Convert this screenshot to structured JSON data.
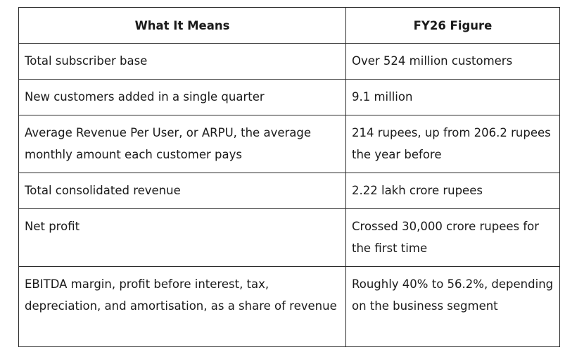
{
  "table": {
    "headers": [
      "What It Means",
      "FY26 Figure"
    ],
    "rows": [
      [
        "Total subscriber base",
        "Over 524 million customers"
      ],
      [
        "New customers added in a single quarter",
        "9.1 million"
      ],
      [
        "Average Revenue Per User, or ARPU, the average monthly amount each customer pays",
        "214 rupees, up from 206.2 rupees the year before"
      ],
      [
        "Total consolidated revenue",
        "2.22 lakh crore rupees"
      ],
      [
        "Net profit",
        "Crossed 30,000 crore rupees for the first time"
      ],
      [
        "EBITDA margin, profit before interest, tax, depreciation, and amortisation, as a share of revenue",
        "Roughly 40% to 56.2%, depending on the business segment"
      ]
    ]
  }
}
